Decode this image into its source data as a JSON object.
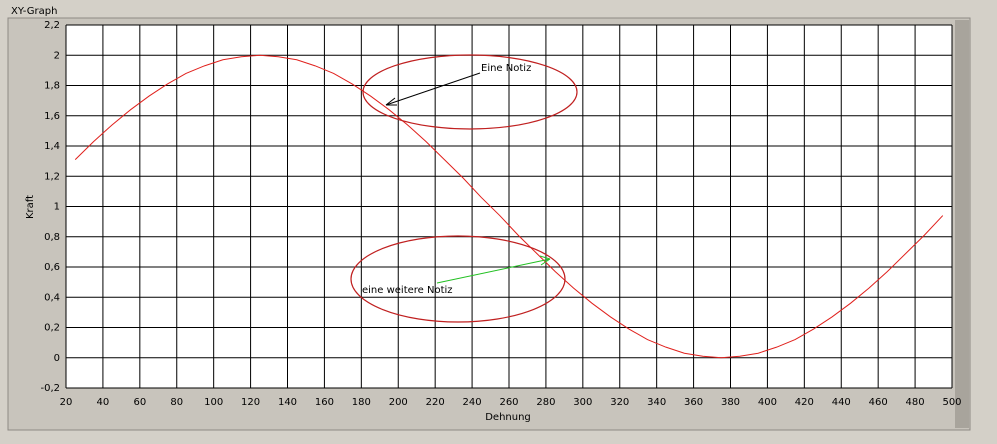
{
  "chart_data": {
    "type": "line",
    "title": "XY-Graph",
    "x_label": "Dehnung",
    "y_label": "Kraft",
    "x": [
      25,
      35,
      45,
      55,
      65,
      75,
      85,
      95,
      105,
      115,
      125,
      135,
      145,
      155,
      165,
      175,
      185,
      195,
      205,
      215,
      225,
      235,
      245,
      255,
      265,
      275,
      285,
      295,
      305,
      315,
      325,
      335,
      345,
      355,
      365,
      375,
      385,
      395,
      405,
      415,
      425,
      435,
      445,
      455,
      465,
      475,
      485,
      495
    ],
    "values": [
      1.31,
      1.43,
      1.54,
      1.64,
      1.73,
      1.81,
      1.88,
      1.93,
      1.97,
      1.99,
      2,
      1.99,
      1.97,
      1.93,
      1.88,
      1.81,
      1.73,
      1.64,
      1.54,
      1.43,
      1.31,
      1.19,
      1.06,
      0.94,
      0.81,
      0.69,
      0.57,
      0.46,
      0.36,
      0.27,
      0.19,
      0.12,
      0.07,
      0.03,
      0.01,
      0,
      0.01,
      0.03,
      0.07,
      0.12,
      0.19,
      0.27,
      0.36,
      0.46,
      0.57,
      0.69,
      0.81,
      0.94
    ],
    "color": "#e0201c",
    "xlim": [
      20,
      500
    ],
    "xticks": [
      20,
      40,
      60,
      80,
      100,
      120,
      140,
      160,
      180,
      200,
      220,
      240,
      260,
      280,
      300,
      320,
      340,
      360,
      380,
      400,
      420,
      440,
      460,
      480,
      500
    ],
    "ylim": [
      -0.2,
      2.2
    ],
    "yticks": [
      {
        "value": -0.2,
        "label": "-0,2"
      },
      0,
      {
        "value": 0.2,
        "label": "0,2"
      },
      {
        "value": 0.4,
        "label": "0,4"
      },
      {
        "value": 0.6,
        "label": "0,6"
      },
      {
        "value": 0.8,
        "label": "0,8"
      },
      1,
      {
        "value": 1.2,
        "label": "1,2"
      },
      {
        "value": 1.4,
        "label": "1,4"
      },
      {
        "value": 1.6,
        "label": "1,6"
      },
      {
        "value": 1.8,
        "label": "1,8"
      },
      2,
      {
        "value": 2.2,
        "label": "2,2"
      }
    ],
    "grid": true,
    "annotations": [
      {
        "text": "Eine Notiz",
        "color": "#000000"
      },
      {
        "text": "eine weitere Notiz",
        "color": "#22c022"
      }
    ]
  }
}
